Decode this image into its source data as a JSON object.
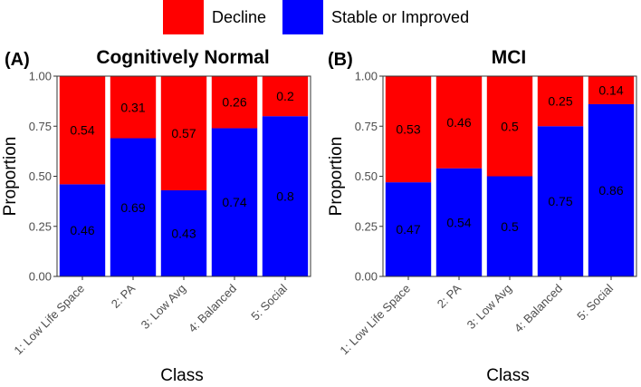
{
  "legend": {
    "items": [
      {
        "label": "Decline",
        "color": "#ff0000"
      },
      {
        "label": "Stable or Improved",
        "color": "#0000ff"
      }
    ]
  },
  "chart_data": [
    {
      "type": "bar",
      "stacked": true,
      "tag": "(A)",
      "title": "Cognitively Normal",
      "xlabel": "Class",
      "ylabel": "Proportion",
      "ylim": [
        0,
        1
      ],
      "yticks": [
        "0.00",
        "0.25",
        "0.50",
        "0.75",
        "1.00"
      ],
      "categories": [
        "1: Low Life Space",
        "2: PA",
        "3: Low Avg",
        "4: Balanced",
        "5: Social"
      ],
      "series": [
        {
          "name": "Stable or Improved",
          "color": "#0000ff",
          "values": [
            0.46,
            0.69,
            0.43,
            0.74,
            0.8
          ]
        },
        {
          "name": "Decline",
          "color": "#ff0000",
          "values": [
            0.54,
            0.31,
            0.57,
            0.26,
            0.2
          ]
        }
      ]
    },
    {
      "type": "bar",
      "stacked": true,
      "tag": "(B)",
      "title": "MCI",
      "xlabel": "Class",
      "ylabel": "Proportion",
      "ylim": [
        0,
        1
      ],
      "yticks": [
        "0.00",
        "0.25",
        "0.50",
        "0.75",
        "1.00"
      ],
      "categories": [
        "1: Low Life Space",
        "2: PA",
        "3: Low Avg",
        "4: Balanced",
        "5: Social"
      ],
      "series": [
        {
          "name": "Stable or Improved",
          "color": "#0000ff",
          "values": [
            0.47,
            0.54,
            0.5,
            0.75,
            0.86
          ]
        },
        {
          "name": "Decline",
          "color": "#ff0000",
          "values": [
            0.53,
            0.46,
            0.5,
            0.25,
            0.14
          ]
        }
      ]
    }
  ]
}
